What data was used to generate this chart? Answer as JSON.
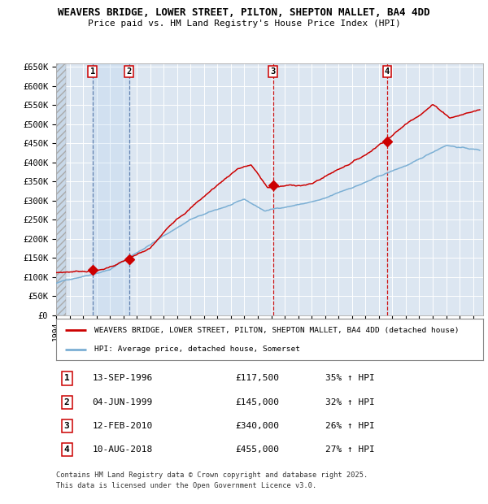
{
  "title_line1": "WEAVERS BRIDGE, LOWER STREET, PILTON, SHEPTON MALLET, BA4 4DD",
  "title_line2": "Price paid vs. HM Land Registry's House Price Index (HPI)",
  "ylim": [
    0,
    660000
  ],
  "yticks": [
    0,
    50000,
    100000,
    150000,
    200000,
    250000,
    300000,
    350000,
    400000,
    450000,
    500000,
    550000,
    600000,
    650000
  ],
  "ytick_labels": [
    "£0",
    "£50K",
    "£100K",
    "£150K",
    "£200K",
    "£250K",
    "£300K",
    "£350K",
    "£400K",
    "£450K",
    "£500K",
    "£550K",
    "£600K",
    "£650K"
  ],
  "xlim_start": 1994.0,
  "xlim_end": 2025.75,
  "background_color": "#ffffff",
  "chart_bg_color": "#dce6f1",
  "grid_color": "#ffffff",
  "red_line_color": "#cc0000",
  "blue_line_color": "#7bafd4",
  "purchase_dates": [
    1996.71,
    1999.42,
    2010.12,
    2018.61
  ],
  "purchase_prices": [
    117500,
    145000,
    340000,
    455000
  ],
  "sale_label_info": [
    {
      "num": "1",
      "date": "13-SEP-1996",
      "price": "£117,500",
      "hpi": "35% ↑ HPI",
      "x": 1996.71,
      "style": "blue_dashed"
    },
    {
      "num": "2",
      "date": "04-JUN-1999",
      "price": "£145,000",
      "hpi": "32% ↑ HPI",
      "x": 1999.42,
      "style": "blue_dashed"
    },
    {
      "num": "3",
      "date": "12-FEB-2010",
      "price": "£340,000",
      "hpi": "26% ↑ HPI",
      "x": 2010.12,
      "style": "red_dashed"
    },
    {
      "num": "4",
      "date": "10-AUG-2018",
      "price": "£455,000",
      "hpi": "27% ↑ HPI",
      "x": 2018.61,
      "style": "red_dashed"
    }
  ],
  "legend_line1": "WEAVERS BRIDGE, LOWER STREET, PILTON, SHEPTON MALLET, BA4 4DD (detached house)",
  "legend_line2": "HPI: Average price, detached house, Somerset",
  "footer_line1": "Contains HM Land Registry data © Crown copyright and database right 2025.",
  "footer_line2": "This data is licensed under the Open Government Licence v3.0."
}
